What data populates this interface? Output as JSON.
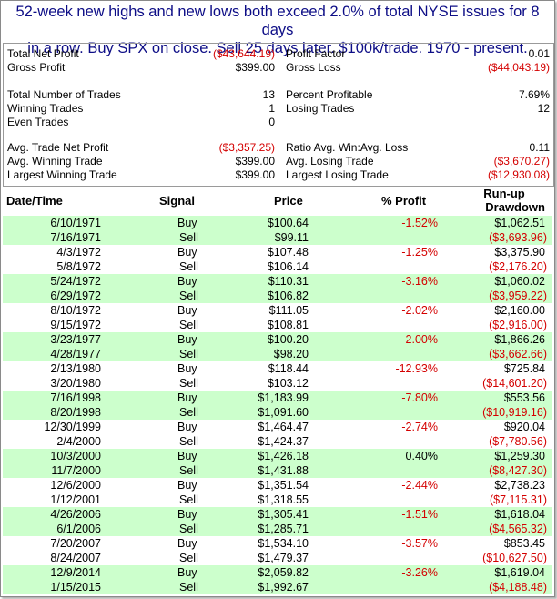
{
  "title_line1": "52-week new highs and new lows both exceed 2.0% of total NYSE issues for 8 days",
  "title_line2": "in a row.  Buy SPX on close. Sell 25 days later. $100k/trade. 1970 - present.",
  "summary": {
    "rows": [
      {
        "l1": "Total Net Profit",
        "v1": "($43,644.19)",
        "n1": true,
        "l2": "Profit Factor",
        "v2": "0.01",
        "n2": false
      },
      {
        "l1": "Gross Profit",
        "v1": "$399.00",
        "n1": false,
        "l2": "Gross Loss",
        "v2": "($44,043.19)",
        "n2": true
      },
      {
        "l1": "",
        "v1": "",
        "n1": false,
        "l2": "",
        "v2": "",
        "n2": false
      },
      {
        "l1": "Total Number of Trades",
        "v1": "13",
        "n1": false,
        "l2": "Percent Profitable",
        "v2": "7.69%",
        "n2": false
      },
      {
        "l1": "Winning Trades",
        "v1": "1",
        "n1": false,
        "l2": "Losing Trades",
        "v2": "12",
        "n2": false
      },
      {
        "l1": "Even Trades",
        "v1": "0",
        "n1": false,
        "l2": "",
        "v2": "",
        "n2": false
      },
      {
        "l1": "",
        "v1": "",
        "n1": false,
        "l2": "",
        "v2": "",
        "n2": false
      },
      {
        "l1": "Avg. Trade Net Profit",
        "v1": "($3,357.25)",
        "n1": true,
        "l2": "Ratio Avg. Win:Avg. Loss",
        "v2": "0.11",
        "n2": false
      },
      {
        "l1": "Avg. Winning Trade",
        "v1": "$399.00",
        "n1": false,
        "l2": "Avg. Losing Trade",
        "v2": "($3,670.27)",
        "n2": true
      },
      {
        "l1": "Largest Winning Trade",
        "v1": "$399.00",
        "n1": false,
        "l2": "Largest Losing Trade",
        "v2": "($12,930.08)",
        "n2": true
      }
    ]
  },
  "table": {
    "headers": {
      "date": "Date/Time",
      "signal": "Signal",
      "price": "Price",
      "profit": "% Profit",
      "runup_line1": "Run-up",
      "runup_line2": "Drawdown"
    },
    "trades": [
      {
        "buy_date": "6/10/1971",
        "buy_price": "$100.64",
        "profit": "-1.52%",
        "runup": "$1,062.51",
        "sell_date": "7/16/1971",
        "sell_price": "$99.11",
        "drawdown": "($3,693.96)"
      },
      {
        "buy_date": "4/3/1972",
        "buy_price": "$107.48",
        "profit": "-1.25%",
        "runup": "$3,375.90",
        "sell_date": "5/8/1972",
        "sell_price": "$106.14",
        "drawdown": "($2,176.20)"
      },
      {
        "buy_date": "5/24/1972",
        "buy_price": "$110.31",
        "profit": "-3.16%",
        "runup": "$1,060.02",
        "sell_date": "6/29/1972",
        "sell_price": "$106.82",
        "drawdown": "($3,959.22)"
      },
      {
        "buy_date": "8/10/1972",
        "buy_price": "$111.05",
        "profit": "-2.02%",
        "runup": "$2,160.00",
        "sell_date": "9/15/1972",
        "sell_price": "$108.81",
        "drawdown": "($2,916.00)"
      },
      {
        "buy_date": "3/23/1977",
        "buy_price": "$100.20",
        "profit": "-2.00%",
        "runup": "$1,866.26",
        "sell_date": "4/28/1977",
        "sell_price": "$98.20",
        "drawdown": "($3,662.66)"
      },
      {
        "buy_date": "2/13/1980",
        "buy_price": "$118.44",
        "profit": "-12.93%",
        "runup": "$725.84",
        "sell_date": "3/20/1980",
        "sell_price": "$103.12",
        "drawdown": "($14,601.20)"
      },
      {
        "buy_date": "7/16/1998",
        "buy_price": "$1,183.99",
        "profit": "-7.80%",
        "runup": "$553.56",
        "sell_date": "8/20/1998",
        "sell_price": "$1,091.60",
        "drawdown": "($10,919.16)"
      },
      {
        "buy_date": "12/30/1999",
        "buy_price": "$1,464.47",
        "profit": "-2.74%",
        "runup": "$920.04",
        "sell_date": "2/4/2000",
        "sell_price": "$1,424.37",
        "drawdown": "($7,780.56)"
      },
      {
        "buy_date": "10/3/2000",
        "buy_price": "$1,426.18",
        "profit": "0.40%",
        "runup": "$1,259.30",
        "sell_date": "11/7/2000",
        "sell_price": "$1,431.88",
        "drawdown": "($8,427.30)"
      },
      {
        "buy_date": "12/6/2000",
        "buy_price": "$1,351.54",
        "profit": "-2.44%",
        "runup": "$2,738.23",
        "sell_date": "1/12/2001",
        "sell_price": "$1,318.55",
        "drawdown": "($7,115.31)"
      },
      {
        "buy_date": "4/26/2006",
        "buy_price": "$1,305.41",
        "profit": "-1.51%",
        "runup": "$1,618.04",
        "sell_date": "6/1/2006",
        "sell_price": "$1,285.71",
        "drawdown": "($4,565.32)"
      },
      {
        "buy_date": "7/20/2007",
        "buy_price": "$1,534.10",
        "profit": "-3.57%",
        "runup": "$853.45",
        "sell_date": "8/24/2007",
        "sell_price": "$1,479.37",
        "drawdown": "($10,627.50)"
      },
      {
        "buy_date": "12/9/2014",
        "buy_price": "$2,059.82",
        "profit": "-3.26%",
        "runup": "$1,619.04",
        "sell_date": "1/15/2015",
        "sell_price": "$1,992.67",
        "drawdown": "($4,188.48)"
      }
    ],
    "buy_label": "Buy",
    "sell_label": "Sell"
  },
  "colors": {
    "title": "#0d0d86",
    "negative": "#d40000",
    "row_highlight": "#ccffcc"
  }
}
